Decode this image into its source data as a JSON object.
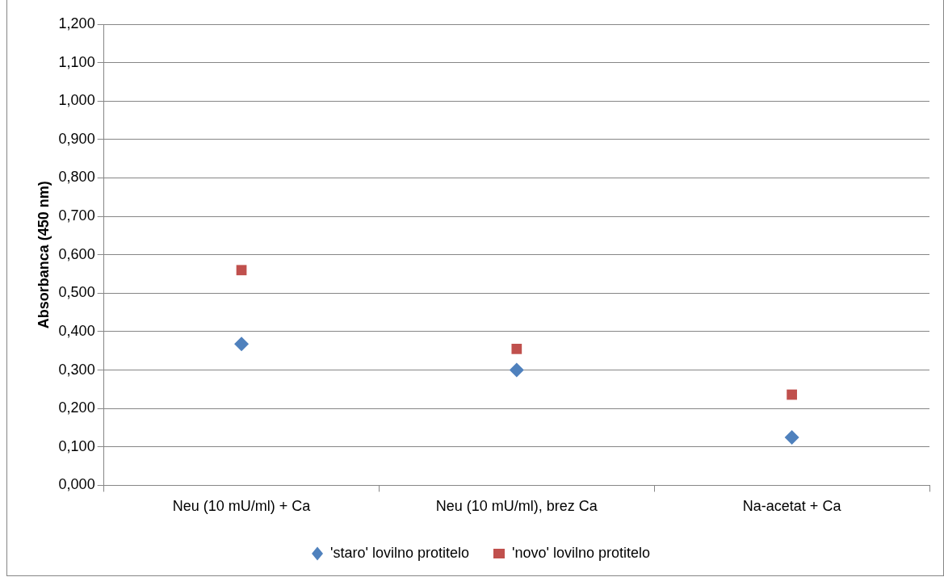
{
  "chart_data": {
    "type": "scatter",
    "ylabel": "Absorbanca (450 nm)",
    "categories": [
      "Neu (10 mU/ml) + Ca",
      "Neu (10 mU/ml), brez Ca",
      "Na-acetat + Ca"
    ],
    "series": [
      {
        "name": "'staro' lovilno protitelo",
        "color": "#4f81bd",
        "marker": "diamond",
        "values": [
          0.368,
          0.3,
          0.125
        ]
      },
      {
        "name": "'novo' lovilno protitelo",
        "color": "#c0504d",
        "marker": "square",
        "values": [
          0.56,
          0.355,
          0.236
        ]
      }
    ],
    "ylim": [
      0,
      1.2
    ],
    "yticks": [
      {
        "value": 0,
        "label": "0,000"
      },
      {
        "value": 0.1,
        "label": "0,100"
      },
      {
        "value": 0.2,
        "label": "0,200"
      },
      {
        "value": 0.3,
        "label": "0,300"
      },
      {
        "value": 0.4,
        "label": "0,400"
      },
      {
        "value": 0.5,
        "label": "0,500"
      },
      {
        "value": 0.6,
        "label": "0,600"
      },
      {
        "value": 0.7,
        "label": "0,700"
      },
      {
        "value": 0.8,
        "label": "0,800"
      },
      {
        "value": 0.9,
        "label": "0,900"
      },
      {
        "value": 1,
        "label": "1,000"
      },
      {
        "value": 1.1,
        "label": "1,100"
      },
      {
        "value": 1.2,
        "label": "1,200"
      }
    ],
    "grid": "y",
    "legend": "bottom"
  }
}
